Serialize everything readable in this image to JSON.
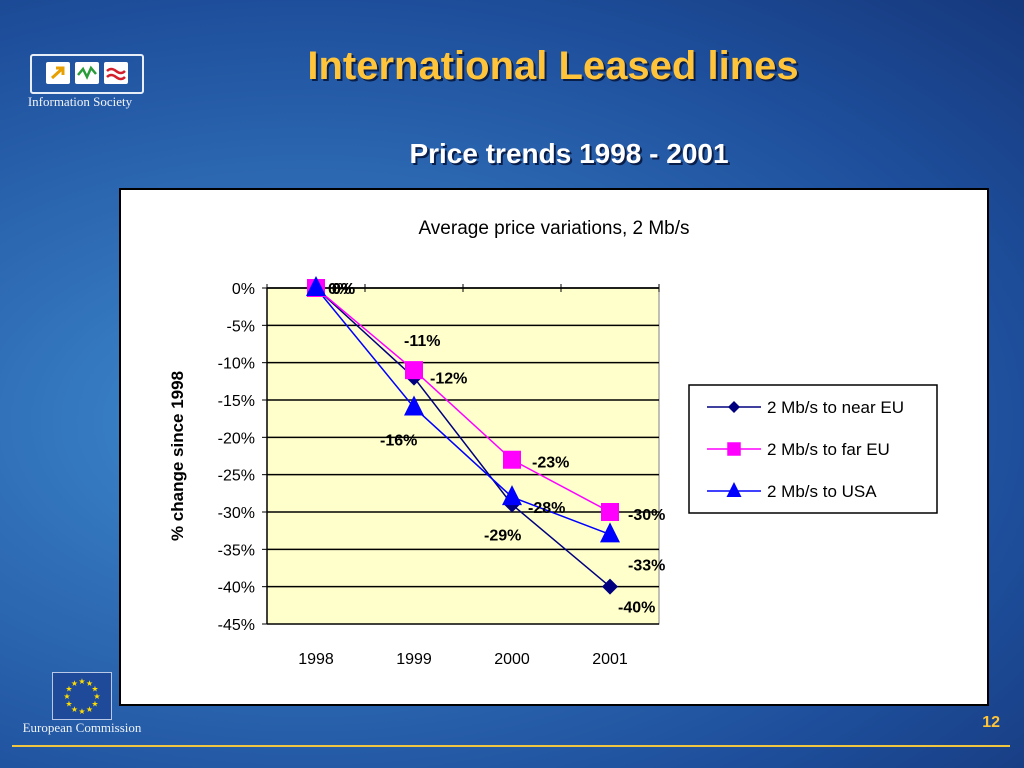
{
  "header": {
    "logo_text": "Information Society",
    "title": "International Leased lines",
    "subtitle": "Price trends 1998 - 2001"
  },
  "footer": {
    "logo_text": "European Commission",
    "page_number": "12"
  },
  "colors": {
    "title": "#ffc43a",
    "plot_background": "#ffffcc",
    "near_eu": "#00007f",
    "far_eu": "#ff00ff",
    "usa": "#0000ff"
  },
  "chart_data": {
    "type": "line",
    "title": "Average price variations, 2 Mb/s",
    "xlabel": "",
    "ylabel": "% change since 1998",
    "categories": [
      "1998",
      "1999",
      "2000",
      "2001"
    ],
    "ylim": [
      -45,
      0
    ],
    "yticks": [
      0,
      -5,
      -10,
      -15,
      -20,
      -25,
      -30,
      -35,
      -40,
      -45
    ],
    "ytick_labels": [
      "0%",
      "-5%",
      "-10%",
      "-15%",
      "-20%",
      "-25%",
      "-30%",
      "-35%",
      "-40%",
      "-45%"
    ],
    "grid": true,
    "legend_position": "right",
    "series": [
      {
        "name": "2 Mb/s to near EU",
        "marker": "diamond",
        "color": "#00007f",
        "values": [
          0,
          -12,
          -29,
          -40
        ],
        "labels": [
          "0%",
          "-12%",
          "-29%",
          "-40%"
        ]
      },
      {
        "name": "2 Mb/s to far EU",
        "marker": "square",
        "color": "#ff00ff",
        "values": [
          0,
          -11,
          -23,
          -30
        ],
        "labels": [
          "0%",
          "-11%",
          "-23%",
          "-30%"
        ]
      },
      {
        "name": "2 Mb/s to USA",
        "marker": "triangle",
        "color": "#0000ff",
        "values": [
          0,
          -16,
          -28,
          -33
        ],
        "labels": [
          "0%",
          "-16%",
          "-28%",
          "-33%"
        ]
      }
    ]
  }
}
